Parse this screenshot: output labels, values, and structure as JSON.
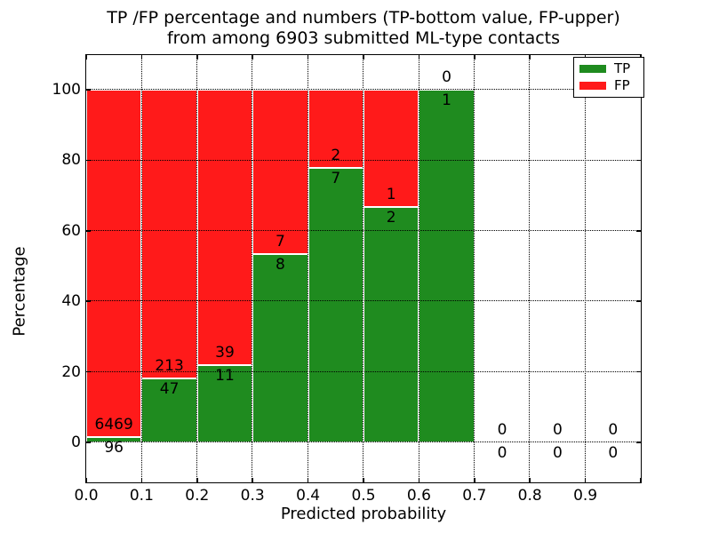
{
  "chart_data": {
    "type": "bar",
    "stacked": true,
    "normalized": "percent",
    "title_lines": [
      "TP /FP percentage and numbers (TP-bottom value, FP-upper)",
      "from among 6903 submitted ML-type contacts"
    ],
    "xlabel": "Predicted probability",
    "ylabel": "Percentage",
    "total_submitted": 6903,
    "bins": [
      "0.0-0.1",
      "0.1-0.2",
      "0.2-0.3",
      "0.3-0.4",
      "0.4-0.5",
      "0.5-0.6",
      "0.6-0.7",
      "0.7-0.8",
      "0.8-0.9",
      "0.9-1.0"
    ],
    "bin_width": 0.1,
    "series": [
      {
        "name": "TP",
        "color": "#1f8b1f",
        "counts": [
          96,
          47,
          11,
          8,
          7,
          2,
          1,
          0,
          0,
          0
        ]
      },
      {
        "name": "FP",
        "color": "#ff1a1a",
        "counts": [
          6469,
          213,
          39,
          7,
          2,
          1,
          0,
          0,
          0,
          0
        ]
      }
    ],
    "tp_percent_by_bin": [
      1.46,
      18.08,
      22.0,
      53.33,
      77.78,
      66.67,
      100.0,
      null,
      null,
      null
    ],
    "xticks": [
      "0.0",
      "0.1",
      "0.2",
      "0.3",
      "0.4",
      "0.5",
      "0.6",
      "0.7",
      "0.8",
      "0.9"
    ],
    "yticks": [
      0,
      20,
      40,
      60,
      80,
      100
    ],
    "xlim": [
      0.0,
      1.0
    ],
    "ylim": [
      -11.3,
      109.8
    ],
    "grid": {
      "style": "dotted",
      "color": "#000000",
      "on": true
    },
    "legend": {
      "position": "upper-right",
      "entries": [
        {
          "label": "TP",
          "color": "#1f8b1f"
        },
        {
          "label": "FP",
          "color": "#ff1a1a"
        }
      ]
    },
    "colors": {
      "axes": "#000000",
      "background": "#ffffff",
      "text": "#000000"
    }
  }
}
